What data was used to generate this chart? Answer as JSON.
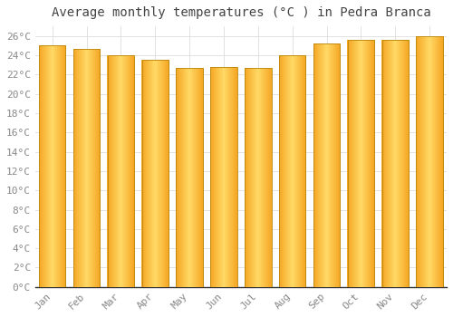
{
  "title": "Average monthly temperatures (°C ) in Pedra Branca",
  "months": [
    "Jan",
    "Feb",
    "Mar",
    "Apr",
    "May",
    "Jun",
    "Jul",
    "Aug",
    "Sep",
    "Oct",
    "Nov",
    "Dec"
  ],
  "temperatures": [
    25.0,
    24.7,
    24.0,
    23.5,
    22.7,
    22.8,
    22.7,
    24.0,
    25.2,
    25.6,
    25.6,
    26.0
  ],
  "bar_color_left": "#F5A623",
  "bar_color_center": "#FFD966",
  "bar_color_right": "#F5A623",
  "bar_edge_color": "#B8860B",
  "background_color": "#FFFFFF",
  "grid_color": "#DDDDDD",
  "ylim": [
    0,
    27
  ],
  "yticks": [
    0,
    2,
    4,
    6,
    8,
    10,
    12,
    14,
    16,
    18,
    20,
    22,
    24,
    26
  ],
  "title_fontsize": 10,
  "tick_fontsize": 8,
  "tick_font_color": "#888888",
  "title_color": "#444444",
  "bar_width": 0.78
}
